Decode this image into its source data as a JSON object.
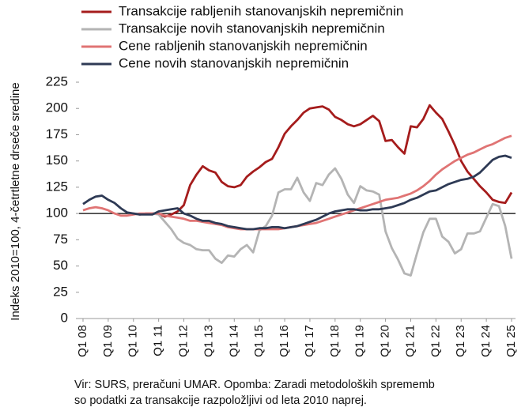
{
  "chart_data": {
    "type": "line",
    "ylabel": "Indeks 2010=100, 4-četrtletne drseče sredine",
    "categories": [
      "Q1 08",
      null,
      null,
      null,
      "Q1 09",
      null,
      null,
      null,
      "Q1 10",
      null,
      null,
      null,
      "Q1 11",
      null,
      null,
      null,
      "Q1 12",
      null,
      null,
      null,
      "Q1 13",
      null,
      null,
      null,
      "Q1 14",
      null,
      null,
      null,
      "Q1 15",
      null,
      null,
      null,
      "Q1 16",
      null,
      null,
      null,
      "Q1 17",
      null,
      null,
      null,
      "Q1 18",
      null,
      null,
      null,
      "Q1 19",
      null,
      null,
      null,
      "Q1 20",
      null,
      null,
      null,
      "Q1 21",
      null,
      null,
      null,
      "Q1 22",
      null,
      null,
      null,
      "Q1 23",
      null,
      null,
      null,
      "Q1 24",
      null,
      null,
      null,
      "Q1 25"
    ],
    "series": [
      {
        "name": "Transakcije rabljenih stanovanjskih nepremičnin",
        "color": "#a51c1c",
        "values": [
          null,
          null,
          null,
          null,
          null,
          null,
          null,
          null,
          100,
          99,
          100,
          100,
          100,
          97,
          99,
          102,
          108,
          127,
          137,
          145,
          141,
          139,
          130,
          126,
          125,
          127,
          135,
          140,
          144,
          149,
          152,
          163,
          176,
          183,
          189,
          196,
          200,
          201,
          202,
          199,
          192,
          189,
          185,
          183,
          185,
          189,
          193,
          188,
          169,
          170,
          163,
          157,
          183,
          182,
          190,
          203,
          196,
          190,
          178,
          165,
          150,
          140,
          133,
          126,
          120,
          113,
          111,
          110,
          120
        ]
      },
      {
        "name": "Transakcije novih stanovanjskih nepremičnin",
        "color": "#b4b4b4",
        "values": [
          null,
          null,
          null,
          null,
          null,
          null,
          null,
          null,
          100,
          99,
          100,
          100,
          99,
          92,
          85,
          76,
          72,
          70,
          66,
          65,
          65,
          57,
          53,
          60,
          59,
          66,
          70,
          63,
          84,
          88,
          98,
          120,
          123,
          123,
          134,
          120,
          112,
          129,
          127,
          137,
          143,
          133,
          118,
          110,
          126,
          122,
          121,
          118,
          83,
          67,
          56,
          43,
          41,
          62,
          82,
          95,
          95,
          78,
          73,
          62,
          66,
          81,
          81,
          83,
          96,
          109,
          107,
          88,
          57
        ]
      },
      {
        "name": "Cene rabljenih stanovanjskih nepremičnin",
        "color": "#e07474",
        "values": [
          103,
          105,
          106,
          105,
          103,
          100,
          98,
          98,
          99,
          100,
          100,
          100,
          100,
          98,
          97,
          96,
          95,
          93,
          93,
          92,
          91,
          90,
          89,
          87,
          86,
          85,
          85,
          85,
          85,
          85,
          85,
          85,
          86,
          87,
          88,
          89,
          90,
          91,
          93,
          95,
          97,
          99,
          101,
          103,
          105,
          107,
          109,
          111,
          113,
          114,
          115,
          117,
          119,
          122,
          126,
          131,
          137,
          142,
          146,
          150,
          153,
          156,
          158,
          161,
          164,
          166,
          169,
          172,
          174
        ]
      },
      {
        "name": "Cene novih stanovanjskih nepremičnin",
        "color": "#2e3a55",
        "values": [
          109,
          113,
          116,
          117,
          113,
          110,
          105,
          101,
          100,
          99,
          99,
          99,
          102,
          103,
          104,
          105,
          100,
          98,
          95,
          93,
          93,
          91,
          90,
          88,
          87,
          86,
          85,
          85,
          86,
          86,
          87,
          87,
          86,
          87,
          88,
          90,
          92,
          94,
          97,
          100,
          102,
          103,
          104,
          104,
          103,
          103,
          104,
          104,
          105,
          106,
          108,
          110,
          113,
          115,
          118,
          121,
          122,
          125,
          128,
          130,
          132,
          133,
          135,
          139,
          145,
          151,
          154,
          155,
          153
        ]
      }
    ],
    "ylim": [
      0,
      225
    ],
    "yticks": [
      0,
      25,
      50,
      75,
      100,
      125,
      150,
      175,
      200,
      225
    ],
    "reference_line": 100,
    "legend": "top-left",
    "note": [
      "Vir: SURS, preračuni UMAR. Opomba: Zaradi metodoloških sprememb",
      "so podatki za transakcije razpoložljivi od leta 2010 naprej."
    ]
  }
}
